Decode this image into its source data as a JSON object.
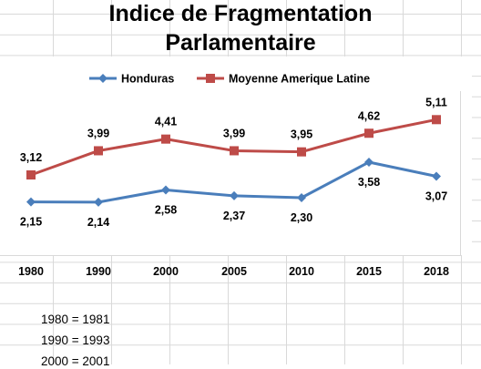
{
  "chart_data": {
    "type": "line",
    "title_lines": [
      "Indice de Fragmentation",
      "Parlamentaire"
    ],
    "categories": [
      "1980",
      "1990",
      "2000",
      "2005",
      "2010",
      "2015",
      "2018"
    ],
    "series": [
      {
        "name": "Honduras",
        "color": "#4a7ebb",
        "marker": "diamond",
        "values": [
          2.15,
          2.14,
          2.58,
          2.37,
          2.3,
          3.58,
          3.07
        ],
        "labels": [
          "2,15",
          "2,14",
          "2,58",
          "2,37",
          "2,30",
          "3,58",
          "3,07"
        ],
        "label_position": [
          "below",
          "below",
          "below",
          "below",
          "below",
          "below",
          "below"
        ]
      },
      {
        "name": "Moyenne Amerique Latine",
        "color": "#be4b48",
        "marker": "square",
        "values": [
          3.12,
          3.99,
          4.41,
          3.99,
          3.95,
          4.62,
          5.11
        ],
        "labels": [
          "3,12",
          "3,99",
          "4,41",
          "3,99",
          "3,95",
          "4,62",
          "5,11"
        ],
        "label_position": [
          "above",
          "above",
          "above",
          "above",
          "above",
          "above",
          "above"
        ]
      }
    ],
    "legend_position": "top",
    "gridlines": true
  },
  "notes": [
    "1980 = 1981",
    "1990 = 1993",
    "2000 = 2001"
  ]
}
